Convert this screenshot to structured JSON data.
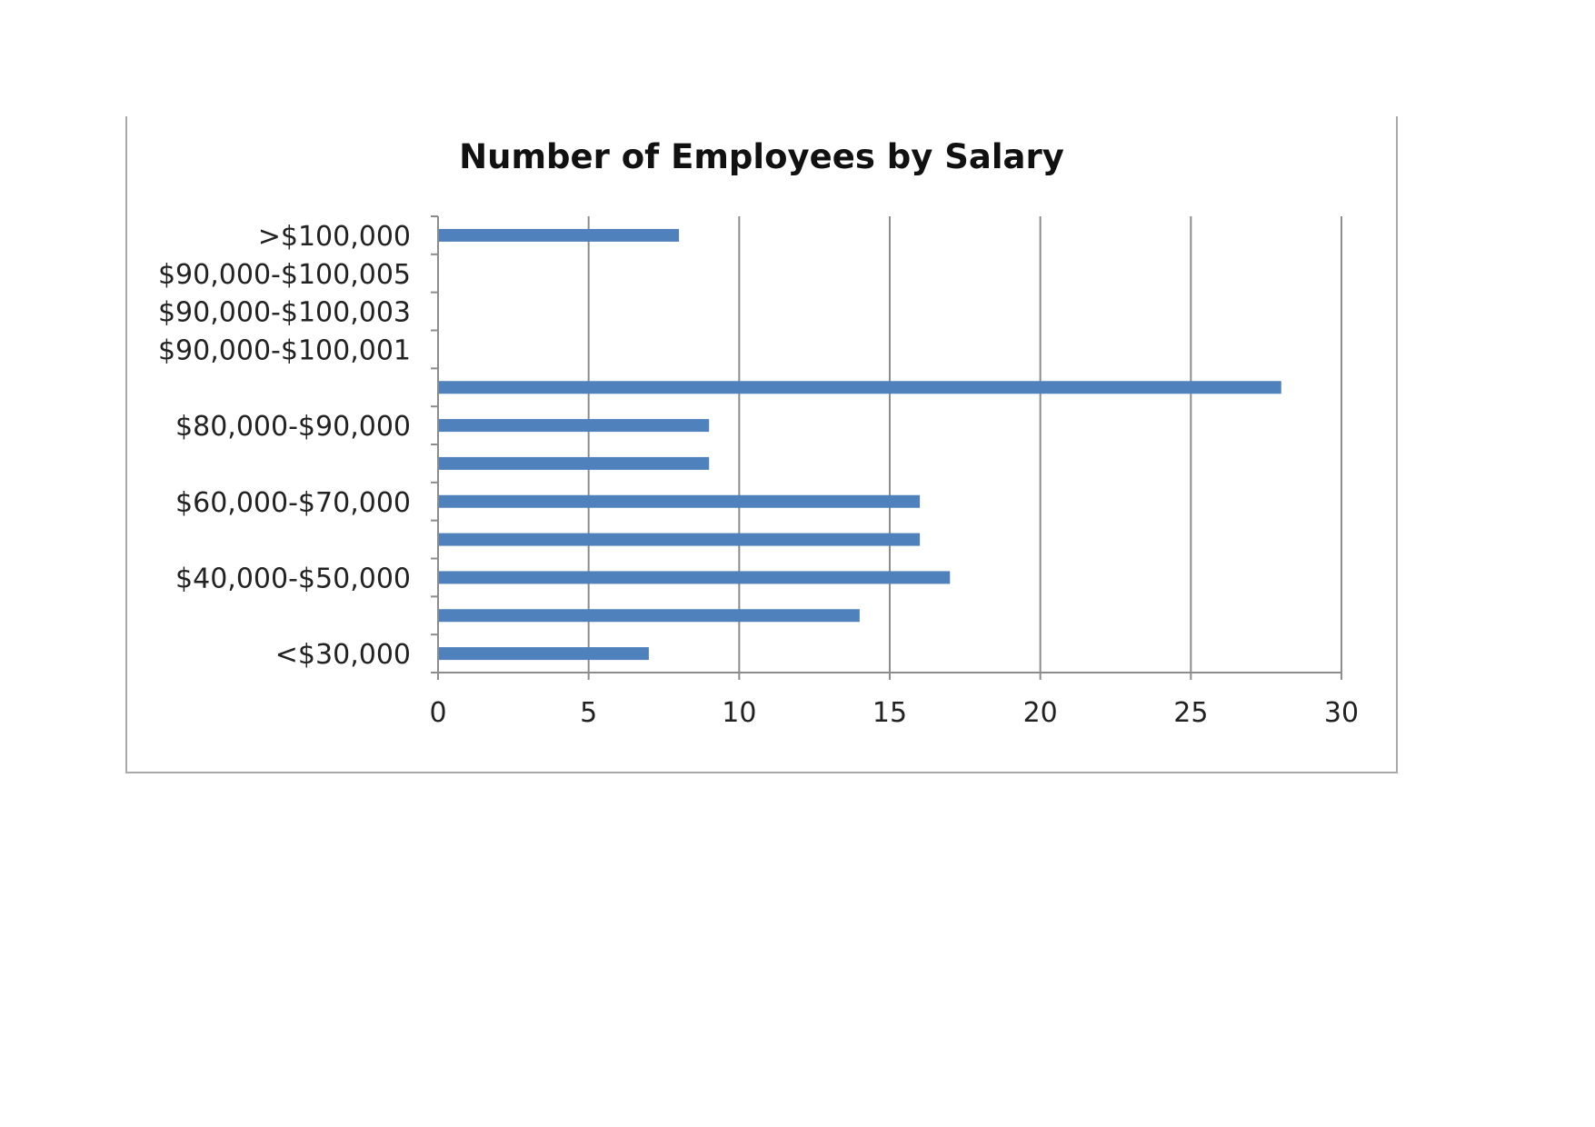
{
  "chart_data": {
    "type": "bar",
    "orientation": "horizontal",
    "title": "Number of Employees by Salary",
    "xlabel": "",
    "ylabel": "",
    "categories": [
      "<$30,000",
      "",
      "$40,000-$50,000",
      "",
      "$60,000-$70,000",
      "",
      "$80,000-$90,000",
      "",
      "$90,000-$100,001",
      "$90,000-$100,003",
      "$90,000-$100,005",
      ">$100,000"
    ],
    "values": [
      7,
      14,
      17,
      16,
      16,
      9,
      9,
      28,
      0,
      0,
      0,
      8
    ],
    "xlim": [
      0,
      30
    ],
    "xticks": [
      "0",
      "5",
      "10",
      "15",
      "20",
      "25",
      "30"
    ],
    "grid": "vertical",
    "legend": "none",
    "bar_color": "#4f81bd",
    "grid_color": "#8c8c8c"
  }
}
